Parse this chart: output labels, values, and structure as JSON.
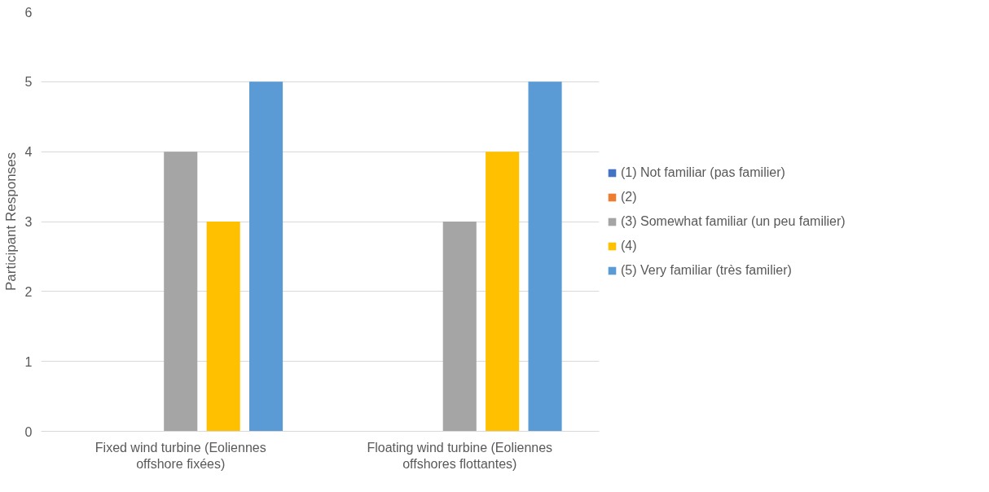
{
  "chart_data": {
    "type": "bar",
    "ylabel": "Participant Responses",
    "categories": [
      "Fixed wind turbine (Eoliennes offshore fixées)",
      "Floating wind turbine (Eoliennes offshores flottantes)"
    ],
    "series": [
      {
        "name": "(1) Not familiar (pas familier)",
        "color": "#4472c4",
        "values": [
          0,
          0
        ]
      },
      {
        "name": "(2)",
        "color": "#ed7d31",
        "values": [
          0,
          0
        ]
      },
      {
        "name": "(3) Somewhat familiar (un peu familier)",
        "color": "#a5a5a5",
        "values": [
          4,
          3
        ]
      },
      {
        "name": "(4)",
        "color": "#ffc000",
        "values": [
          3,
          4
        ]
      },
      {
        "name": "(5) Very familiar (très familier)",
        "color": "#5b9bd5",
        "values": [
          5,
          5
        ]
      }
    ],
    "ylim": [
      0,
      6
    ],
    "yticks": [
      0,
      1,
      2,
      3,
      4,
      5,
      6
    ],
    "grid": "y",
    "legend": "right"
  }
}
